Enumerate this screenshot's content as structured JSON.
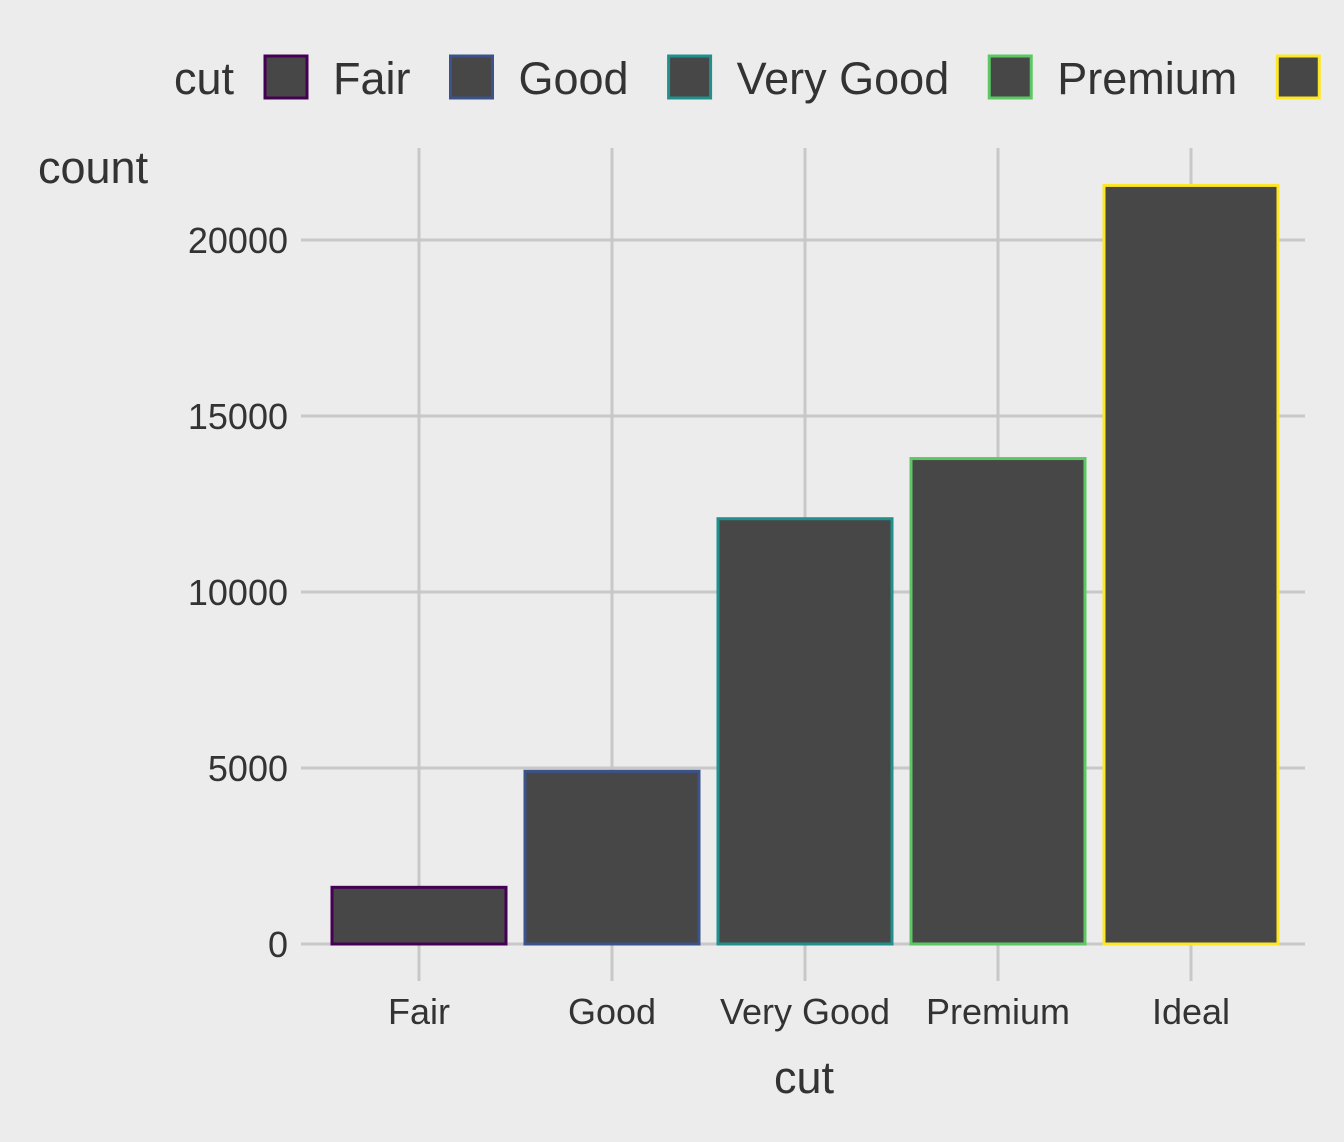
{
  "chart_data": {
    "type": "bar",
    "categories": [
      "Fair",
      "Good",
      "Very Good",
      "Premium",
      "Ideal"
    ],
    "values": [
      1610,
      4906,
      12082,
      13791,
      21551
    ],
    "xlabel": "cut",
    "ylabel": "count",
    "ylim": [
      0,
      22000
    ],
    "yticks": [
      0,
      5000,
      10000,
      15000,
      20000
    ],
    "grid": true,
    "legend": {
      "title": "cut",
      "placement": "top",
      "entries": [
        "Fair",
        "Good",
        "Very Good",
        "Premium",
        "Ideal"
      ]
    },
    "colors": {
      "fill": "#474747",
      "outlines": [
        "#440154",
        "#3b528b",
        "#21908c",
        "#5dc863",
        "#fde725"
      ],
      "background": "#ececec",
      "grid": "#c8c8c8",
      "text": "#333333"
    }
  }
}
